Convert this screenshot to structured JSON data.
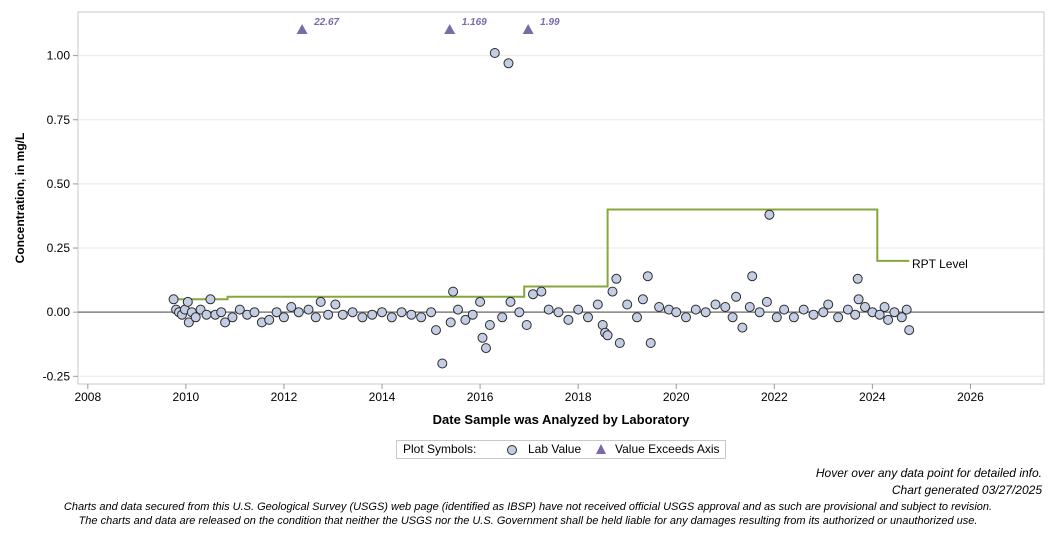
{
  "chart_data": {
    "type": "scatter",
    "title": "",
    "xlabel": "Date Sample was Analyzed by Laboratory",
    "ylabel": "Concentration, in mg/L",
    "xlim": [
      2007.8,
      2027.5
    ],
    "ylim": [
      -0.28,
      1.17
    ],
    "x_ticks": [
      2008,
      2010,
      2012,
      2014,
      2016,
      2018,
      2020,
      2022,
      2024,
      2026
    ],
    "y_ticks": [
      -0.25,
      0.0,
      0.25,
      0.5,
      0.75,
      1.0
    ],
    "y_tick_labels": [
      "-0.25",
      "0.00",
      "0.25",
      "0.50",
      "0.75",
      "1.00"
    ],
    "grid": "horizontal",
    "zero_line": 0,
    "colors": {
      "marker_fill": "#c3cde3",
      "marker_stroke": "#2b2b2b",
      "triangle": "#7b6aa8",
      "rpt_line": "#86a73c",
      "axis": "#999999",
      "grid": "#e8e8e8"
    },
    "series": [
      {
        "name": "Lab Value",
        "marker": "circle",
        "points": [
          [
            2009.75,
            0.05
          ],
          [
            2009.8,
            0.01
          ],
          [
            2009.86,
            0.0
          ],
          [
            2009.92,
            -0.01
          ],
          [
            2009.98,
            0.01
          ],
          [
            2010.04,
            0.04
          ],
          [
            2010.06,
            -0.04
          ],
          [
            2010.12,
            0.0
          ],
          [
            2010.2,
            -0.02
          ],
          [
            2010.3,
            0.01
          ],
          [
            2010.42,
            -0.01
          ],
          [
            2010.5,
            0.05
          ],
          [
            2010.6,
            -0.01
          ],
          [
            2010.72,
            0.0
          ],
          [
            2010.8,
            -0.04
          ],
          [
            2010.95,
            -0.02
          ],
          [
            2011.1,
            0.01
          ],
          [
            2011.25,
            -0.01
          ],
          [
            2011.4,
            0.0
          ],
          [
            2011.55,
            -0.04
          ],
          [
            2011.7,
            -0.03
          ],
          [
            2011.85,
            0.0
          ],
          [
            2012.0,
            -0.02
          ],
          [
            2012.15,
            0.02
          ],
          [
            2012.3,
            0.0
          ],
          [
            2012.5,
            0.01
          ],
          [
            2012.65,
            -0.02
          ],
          [
            2012.75,
            0.04
          ],
          [
            2012.9,
            -0.01
          ],
          [
            2013.05,
            0.03
          ],
          [
            2013.2,
            -0.01
          ],
          [
            2013.4,
            0.0
          ],
          [
            2013.6,
            -0.02
          ],
          [
            2013.8,
            -0.01
          ],
          [
            2014.0,
            0.0
          ],
          [
            2014.2,
            -0.02
          ],
          [
            2014.4,
            0.0
          ],
          [
            2014.6,
            -0.01
          ],
          [
            2014.8,
            -0.02
          ],
          [
            2015.0,
            0.0
          ],
          [
            2015.1,
            -0.07
          ],
          [
            2015.23,
            -0.2
          ],
          [
            2015.4,
            -0.04
          ],
          [
            2015.45,
            0.08
          ],
          [
            2015.55,
            0.01
          ],
          [
            2015.7,
            -0.03
          ],
          [
            2015.85,
            -0.01
          ],
          [
            2016.0,
            0.04
          ],
          [
            2016.05,
            -0.1
          ],
          [
            2016.12,
            -0.14
          ],
          [
            2016.2,
            -0.05
          ],
          [
            2016.3,
            1.01
          ],
          [
            2016.45,
            -0.02
          ],
          [
            2016.58,
            0.97
          ],
          [
            2016.62,
            0.04
          ],
          [
            2016.8,
            0.0
          ],
          [
            2016.95,
            -0.05
          ],
          [
            2017.08,
            0.07
          ],
          [
            2017.25,
            0.08
          ],
          [
            2017.4,
            0.01
          ],
          [
            2017.6,
            0.0
          ],
          [
            2017.8,
            -0.03
          ],
          [
            2018.0,
            0.01
          ],
          [
            2018.2,
            -0.02
          ],
          [
            2018.4,
            0.03
          ],
          [
            2018.5,
            -0.05
          ],
          [
            2018.55,
            -0.08
          ],
          [
            2018.6,
            -0.09
          ],
          [
            2018.7,
            0.08
          ],
          [
            2018.78,
            0.13
          ],
          [
            2018.85,
            -0.12
          ],
          [
            2019.0,
            0.03
          ],
          [
            2019.2,
            -0.02
          ],
          [
            2019.32,
            0.05
          ],
          [
            2019.42,
            0.14
          ],
          [
            2019.48,
            -0.12
          ],
          [
            2019.65,
            0.02
          ],
          [
            2019.85,
            0.01
          ],
          [
            2020.0,
            0.0
          ],
          [
            2020.2,
            -0.02
          ],
          [
            2020.4,
            0.01
          ],
          [
            2020.6,
            0.0
          ],
          [
            2020.8,
            0.03
          ],
          [
            2021.0,
            0.02
          ],
          [
            2021.15,
            -0.02
          ],
          [
            2021.22,
            0.06
          ],
          [
            2021.35,
            -0.06
          ],
          [
            2021.5,
            0.02
          ],
          [
            2021.55,
            0.14
          ],
          [
            2021.7,
            0.0
          ],
          [
            2021.85,
            0.04
          ],
          [
            2021.9,
            0.38
          ],
          [
            2022.05,
            -0.02
          ],
          [
            2022.2,
            0.01
          ],
          [
            2022.4,
            -0.02
          ],
          [
            2022.6,
            0.01
          ],
          [
            2022.8,
            -0.01
          ],
          [
            2023.0,
            0.0
          ],
          [
            2023.1,
            0.03
          ],
          [
            2023.3,
            -0.02
          ],
          [
            2023.5,
            0.01
          ],
          [
            2023.65,
            -0.01
          ],
          [
            2023.7,
            0.13
          ],
          [
            2023.72,
            0.05
          ],
          [
            2023.85,
            0.02
          ],
          [
            2024.0,
            0.0
          ],
          [
            2024.15,
            -0.01
          ],
          [
            2024.25,
            0.02
          ],
          [
            2024.32,
            -0.03
          ],
          [
            2024.45,
            0.0
          ],
          [
            2024.6,
            -0.02
          ],
          [
            2024.7,
            0.01
          ],
          [
            2024.75,
            -0.07
          ]
        ]
      },
      {
        "name": "Value Exceeds Axis",
        "marker": "triangle",
        "points": [
          {
            "x": 2012.37,
            "label": "22.67"
          },
          {
            "x": 2015.38,
            "label": "1.169"
          },
          {
            "x": 2016.98,
            "label": "1.99"
          }
        ]
      },
      {
        "name": "RPT Level",
        "type": "step",
        "points": [
          [
            2009.75,
            0.05
          ],
          [
            2010.85,
            0.05
          ],
          [
            2010.85,
            0.06
          ],
          [
            2016.9,
            0.06
          ],
          [
            2016.9,
            0.1
          ],
          [
            2018.6,
            0.1
          ],
          [
            2018.6,
            0.4
          ],
          [
            2024.1,
            0.4
          ],
          [
            2024.1,
            0.2
          ],
          [
            2024.75,
            0.2
          ]
        ]
      }
    ]
  },
  "legend": {
    "title": "Plot Symbols:",
    "items": [
      "Lab Value",
      "Value Exceeds Axis"
    ]
  },
  "rpt_label": "RPT Level",
  "hover_note": "Hover over any data point for detailed info.",
  "generated": "Chart generated 03/27/2025",
  "disclaimer_1": "Charts and data secured from this U.S. Geological Survey (USGS) web page (identified as IBSP) have not received official USGS approval and as such are provisional and subject to revision.",
  "disclaimer_2": "The charts and data are released on the condition that neither the USGS nor the U.S. Government shall be held liable for any damages resulting from its authorized or unauthorized use."
}
